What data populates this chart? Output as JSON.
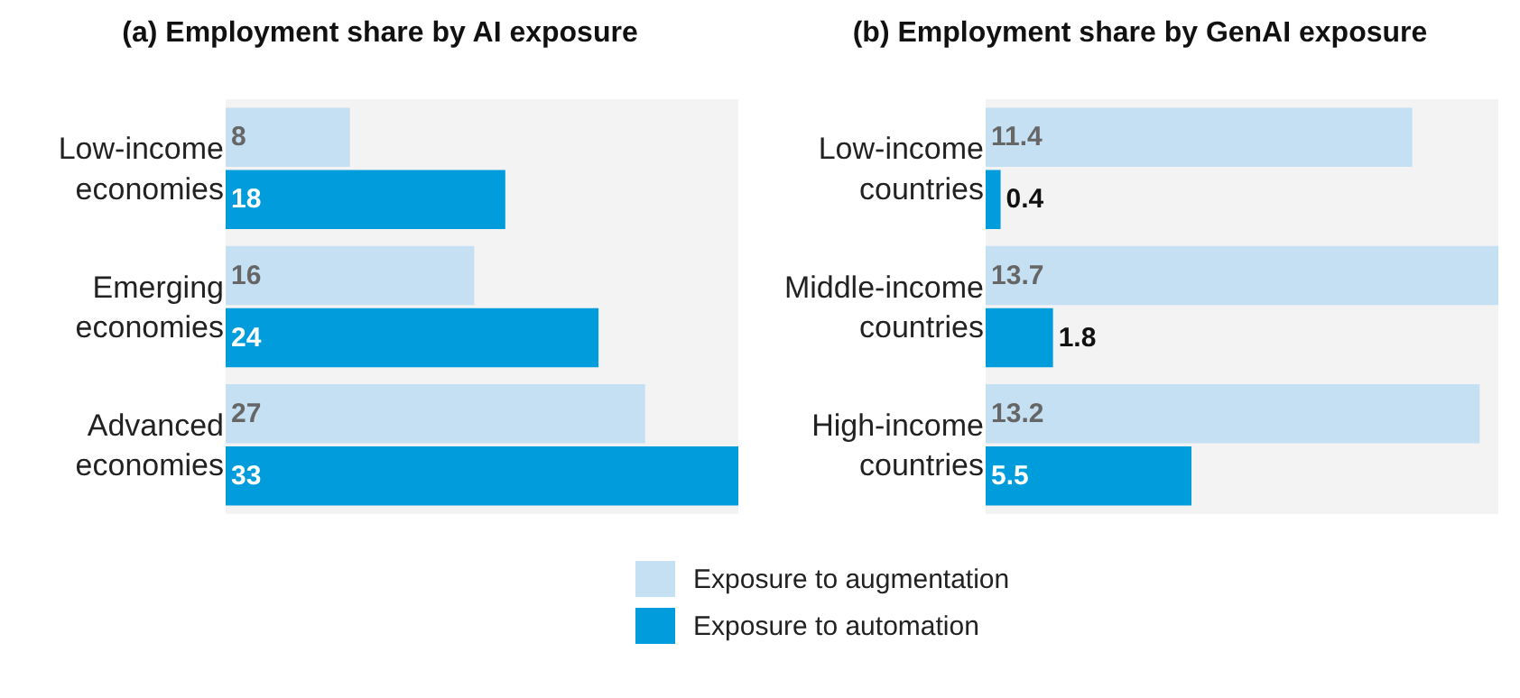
{
  "chart_data": [
    {
      "type": "bar",
      "orientation": "horizontal",
      "title": "(a) Employment share by AI exposure",
      "categories": [
        "Low-income economies",
        "Emerging economies",
        "Advanced economies"
      ],
      "series": [
        {
          "name": "Exposure to augmentation",
          "color": "#c5dff3",
          "values": [
            8,
            16,
            27
          ]
        },
        {
          "name": "Exposure to automation",
          "color": "#009cdc",
          "values": [
            18,
            24,
            33
          ]
        }
      ],
      "xlim": [
        0,
        33
      ],
      "tick_labels": "y",
      "data_labels": true,
      "legend": "bottom"
    },
    {
      "type": "bar",
      "orientation": "horizontal",
      "title": "(b) Employment share by GenAI exposure",
      "categories": [
        "Low-income countries",
        "Middle-income countries",
        "High-income countries"
      ],
      "series": [
        {
          "name": "Exposure to augmentation",
          "color": "#c5dff3",
          "values": [
            11.4,
            13.7,
            13.2
          ]
        },
        {
          "name": "Exposure to automation",
          "color": "#009cdc",
          "values": [
            0.4,
            1.8,
            5.5
          ]
        }
      ],
      "xlim": [
        0,
        13.7
      ],
      "tick_labels": "y",
      "data_labels": true,
      "legend": false
    }
  ]
}
